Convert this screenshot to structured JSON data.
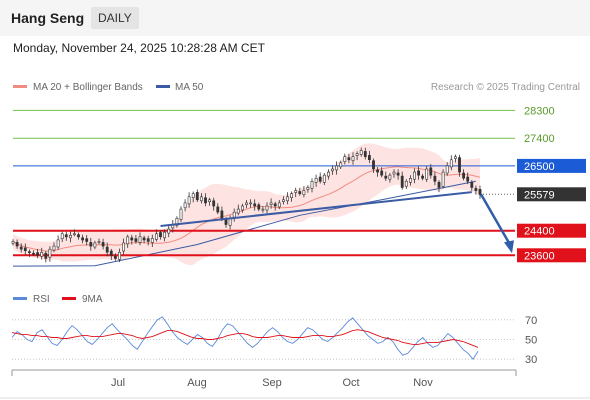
{
  "header": {
    "title": "Hang Seng",
    "period": "DAILY"
  },
  "datetime": "Monday, November 24, 2025 10:28:28 AM CET",
  "legend": {
    "ma20": "MA 20 + Bollinger Bands",
    "ma50": "MA 50"
  },
  "copyright": "Research © 2025 Trading Central",
  "rsi_legend": {
    "rsi": "RSI",
    "ma9": "9MA"
  },
  "colors": {
    "ma20": "#f28b82",
    "ma50": "#3b5ba5",
    "red": "#e0111a",
    "blue": "#1c5bd6",
    "green": "#74c045",
    "current": "#333333",
    "arrow": "#2f5fa8"
  },
  "chart_data": [
    {
      "type": "candlestick",
      "x_tick_labels": [
        "Jul",
        "Aug",
        "Sep",
        "Oct",
        "Nov"
      ],
      "ylim": [
        22800,
        28800
      ],
      "levels": [
        {
          "label": "28300",
          "value": 28300,
          "kind": "green"
        },
        {
          "label": "27400",
          "value": 27400,
          "kind": "green"
        },
        {
          "label": "26500",
          "value": 26500,
          "kind": "blue"
        },
        {
          "label": "25579",
          "value": 25579,
          "kind": "current"
        },
        {
          "label": "24400",
          "value": 24400,
          "kind": "red"
        },
        {
          "label": "23600",
          "value": 23600,
          "kind": "red"
        }
      ],
      "closes": [
        24050,
        23900,
        23800,
        23750,
        23700,
        23650,
        23600,
        23700,
        23500,
        23800,
        23900,
        24100,
        24300,
        24200,
        24250,
        24300,
        24200,
        24100,
        24050,
        23900,
        24000,
        24050,
        23900,
        23700,
        23600,
        23500,
        23700,
        24000,
        24200,
        24100,
        24050,
        24200,
        24100,
        24050,
        24150,
        24300,
        24200,
        24350,
        24450,
        24600,
        24800,
        25100,
        25300,
        25500,
        25600,
        25400,
        25500,
        25300,
        25400,
        25200,
        25000,
        24800,
        24600,
        24800,
        25000,
        25100,
        25200,
        25300,
        25300,
        25200,
        25100,
        25100,
        25200,
        25300,
        25200,
        25300,
        25400,
        25500,
        25600,
        25700,
        25600,
        25700,
        25800,
        26000,
        26100,
        26000,
        26200,
        26300,
        26400,
        26500,
        26600,
        26800,
        26700,
        26800,
        26900,
        27000,
        26800,
        26700,
        26400,
        26300,
        26200,
        26100,
        26200,
        26300,
        26200,
        25800,
        26000,
        26100,
        26300,
        26200,
        26100,
        26400,
        26200,
        26000,
        25800,
        26300,
        26500,
        26700,
        26800,
        26300,
        26100,
        26000,
        25800,
        25700,
        25579
      ],
      "ma50_line": [
        [
          0,
          23250
        ],
        [
          20,
          23260
        ],
        [
          45,
          23950
        ],
        [
          70,
          24900
        ],
        [
          90,
          25400
        ],
        [
          113,
          26000
        ]
      ],
      "trendline": [
        [
          36,
          24550
        ],
        [
          112,
          25650
        ]
      ],
      "forecast_arrow": {
        "from": 25579,
        "to": 23600
      }
    },
    {
      "type": "line",
      "series": [
        {
          "name": "RSI"
        },
        {
          "name": "9MA"
        }
      ],
      "y_ticks": [
        70,
        50,
        30
      ],
      "ylim": [
        20,
        80
      ],
      "rsi": [
        52,
        58,
        55,
        50,
        48,
        57,
        60,
        53,
        46,
        44,
        50,
        58,
        64,
        60,
        54,
        48,
        45,
        50,
        56,
        62,
        66,
        60,
        55,
        50,
        44,
        40,
        48,
        56,
        63,
        70,
        73,
        66,
        58,
        52,
        48,
        45,
        50,
        55,
        52,
        46,
        43,
        50,
        60,
        66,
        64,
        58,
        52,
        46,
        42,
        46,
        52,
        58,
        62,
        58,
        52,
        48,
        46,
        50,
        56,
        62,
        60,
        55,
        50,
        48,
        52,
        57,
        62,
        68,
        72,
        66,
        60,
        54,
        50,
        46,
        48,
        52,
        48,
        40,
        34,
        36,
        42,
        48,
        52,
        46,
        42,
        44,
        50,
        56,
        52,
        46,
        40,
        36,
        30,
        38
      ],
      "ma9": [
        57,
        56,
        55,
        55,
        54,
        54,
        53,
        53,
        52,
        52,
        51,
        51,
        52,
        53,
        54,
        54,
        53,
        53,
        53,
        54,
        55,
        56,
        56,
        55,
        54,
        52,
        51,
        52,
        53,
        55,
        57,
        59,
        59,
        58,
        56,
        54,
        52,
        51,
        51,
        50,
        50,
        51,
        52,
        54,
        55,
        56,
        56,
        55,
        53,
        52,
        52,
        52,
        53,
        54,
        54,
        53,
        52,
        52,
        52,
        53,
        54,
        54,
        54,
        53,
        53,
        54,
        55,
        57,
        59,
        60,
        59,
        58,
        56,
        54,
        52,
        51,
        50,
        49,
        47,
        46,
        45,
        45,
        46,
        47,
        47,
        47,
        48,
        49,
        50,
        49,
        48,
        46,
        44,
        42
      ]
    }
  ]
}
